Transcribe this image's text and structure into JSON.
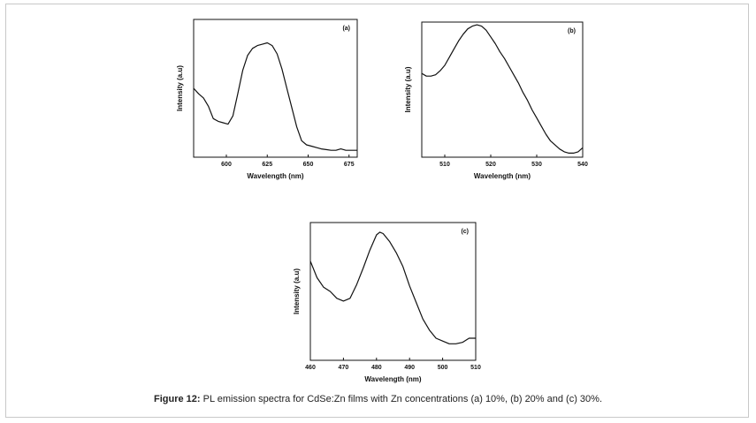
{
  "caption": {
    "label": "Figure 12:",
    "text": " PL emission spectra for CdSe:Zn films with Zn concentrations (a) 10%, (b) 20% and (c) 30%."
  },
  "chart_data": [
    {
      "type": "line",
      "panel": "(a)",
      "xlabel": "Wavelength (nm)",
      "ylabel": "Intensity (a.u)",
      "xlim": [
        580,
        680
      ],
      "ylim": [
        0,
        1
      ],
      "xticks": [
        600,
        625,
        650,
        675
      ],
      "x": [
        580,
        583,
        586,
        589,
        592,
        595,
        598,
        601,
        604,
        607,
        610,
        613,
        616,
        619,
        622,
        625,
        628,
        631,
        634,
        637,
        640,
        643,
        646,
        649,
        652,
        655,
        658,
        661,
        664,
        667,
        670,
        673,
        676,
        680
      ],
      "y": [
        0.5,
        0.46,
        0.43,
        0.37,
        0.28,
        0.26,
        0.25,
        0.24,
        0.3,
        0.46,
        0.63,
        0.74,
        0.79,
        0.81,
        0.82,
        0.83,
        0.81,
        0.75,
        0.64,
        0.5,
        0.36,
        0.22,
        0.12,
        0.09,
        0.08,
        0.07,
        0.06,
        0.055,
        0.05,
        0.05,
        0.06,
        0.05,
        0.05,
        0.05
      ]
    },
    {
      "type": "line",
      "panel": "(b)",
      "xlabel": "Wavelength (nm)",
      "ylabel": "Intensity (a.u)",
      "xlim": [
        505,
        540
      ],
      "ylim": [
        0,
        1
      ],
      "xticks": [
        510,
        520,
        530,
        540
      ],
      "x": [
        505,
        506,
        507,
        508,
        509,
        510,
        511,
        512,
        513,
        514,
        515,
        516,
        517,
        518,
        519,
        520,
        521,
        522,
        523,
        524,
        525,
        526,
        527,
        528,
        529,
        530,
        531,
        532,
        533,
        534,
        535,
        536,
        537,
        538,
        539,
        540
      ],
      "y": [
        0.62,
        0.6,
        0.6,
        0.61,
        0.64,
        0.68,
        0.74,
        0.8,
        0.86,
        0.91,
        0.95,
        0.97,
        0.98,
        0.97,
        0.94,
        0.89,
        0.84,
        0.78,
        0.73,
        0.67,
        0.61,
        0.55,
        0.48,
        0.42,
        0.35,
        0.29,
        0.23,
        0.17,
        0.12,
        0.09,
        0.06,
        0.04,
        0.03,
        0.03,
        0.04,
        0.07
      ]
    },
    {
      "type": "line",
      "panel": "(c)",
      "xlabel": "Wavelength (nm)",
      "ylabel": "Intensity (a.u)",
      "xlim": [
        460,
        510
      ],
      "ylim": [
        0,
        1
      ],
      "xticks": [
        460,
        470,
        480,
        490,
        500,
        510
      ],
      "x": [
        460,
        462,
        464,
        466,
        468,
        470,
        472,
        474,
        476,
        478,
        480,
        481,
        482,
        484,
        486,
        488,
        490,
        492,
        494,
        496,
        498,
        500,
        502,
        504,
        506,
        508,
        510
      ],
      "y": [
        0.72,
        0.6,
        0.53,
        0.5,
        0.45,
        0.43,
        0.45,
        0.55,
        0.67,
        0.8,
        0.91,
        0.93,
        0.92,
        0.86,
        0.78,
        0.68,
        0.54,
        0.42,
        0.3,
        0.22,
        0.16,
        0.14,
        0.12,
        0.12,
        0.13,
        0.16,
        0.16
      ]
    }
  ]
}
